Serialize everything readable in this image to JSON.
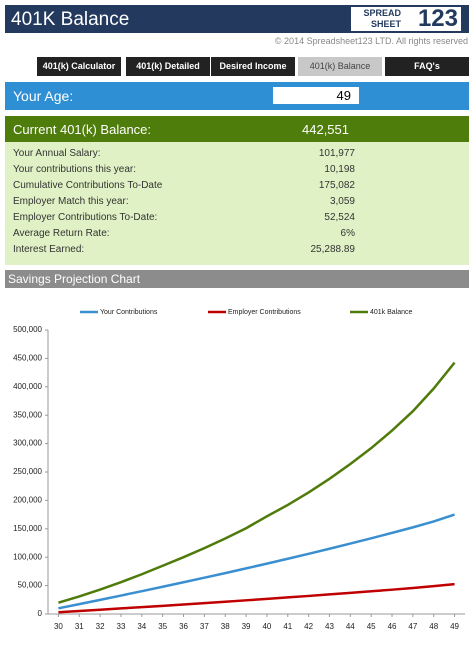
{
  "header": {
    "title": "401K Balance",
    "logo": [
      "SPREAD",
      "SHEET",
      "123"
    ],
    "copyright": "© 2014 Spreadsheet123 LTD. All rights reserved"
  },
  "tabs": [
    "401(k) Calculator",
    "401(k) Detailed",
    "Desired Income",
    "401(k) Balance",
    "FAQ's"
  ],
  "age": {
    "label": "Your Age:",
    "value": "49"
  },
  "balance": {
    "label": "Current 401(k) Balance:",
    "value": "442,551"
  },
  "details": [
    [
      "Your Annual Salary:",
      "101,977"
    ],
    [
      "Your contributions this year:",
      "10,198"
    ],
    [
      "Cumulative Contributions To-Date",
      "175,082"
    ],
    [
      "Employer Match this year:",
      "3,059"
    ],
    [
      "Employer Contributions To-Date:",
      "52,524"
    ],
    [
      "Average Return Rate:",
      "6%"
    ],
    [
      "Interest Earned:",
      "25,288.89"
    ]
  ],
  "chart_section": "Savings Projection Chart",
  "chart_data": {
    "type": "line",
    "x": [
      30,
      31,
      32,
      33,
      34,
      35,
      36,
      37,
      38,
      39,
      40,
      41,
      42,
      43,
      44,
      45,
      46,
      47,
      48,
      49
    ],
    "xlim": [
      29.5,
      49.5
    ],
    "xticks": [
      30,
      31,
      32,
      33,
      34,
      35,
      36,
      37,
      38,
      39,
      40,
      41,
      42,
      43,
      44,
      45,
      46,
      47,
      48,
      49
    ],
    "ylim": [
      0,
      500000
    ],
    "yticks": [
      0,
      {
        "value": 50000,
        "label": "50,000"
      },
      {
        "value": 100000,
        "label": "100,000"
      },
      {
        "value": 150000,
        "label": "150,000"
      },
      {
        "value": 200000,
        "label": "200,000"
      },
      {
        "value": 250000,
        "label": "250,000"
      },
      {
        "value": 300000,
        "label": "300,000"
      },
      {
        "value": 350000,
        "label": "350,000"
      },
      {
        "value": 400000,
        "label": "400,000"
      },
      {
        "value": 450000,
        "label": "450,000"
      },
      {
        "value": 500000,
        "label": "500,000"
      }
    ],
    "grid": false,
    "legend": "top",
    "series": [
      {
        "name": "Your Contributions",
        "color": "#3a8fd0",
        "values": [
          10000,
          17400,
          24900,
          32500,
          40200,
          48000,
          55900,
          63900,
          72000,
          80300,
          88700,
          97300,
          106000,
          114900,
          124000,
          133300,
          142800,
          152500,
          163000,
          175082
        ]
      },
      {
        "name": "Employer Contributions",
        "color": "#c00000",
        "values": [
          3000,
          5200,
          7500,
          9800,
          12100,
          14400,
          16800,
          19200,
          21600,
          24100,
          26600,
          29200,
          31800,
          34500,
          37200,
          40000,
          42800,
          45800,
          49000,
          52524
        ]
      },
      {
        "name": "401k Balance",
        "color": "#4f7b0a",
        "values": [
          20000,
          31000,
          43000,
          56000,
          70000,
          85000,
          100000,
          116000,
          133000,
          151000,
          172000,
          192000,
          214000,
          238000,
          264000,
          292000,
          323000,
          357000,
          397000,
          442551
        ]
      }
    ]
  }
}
